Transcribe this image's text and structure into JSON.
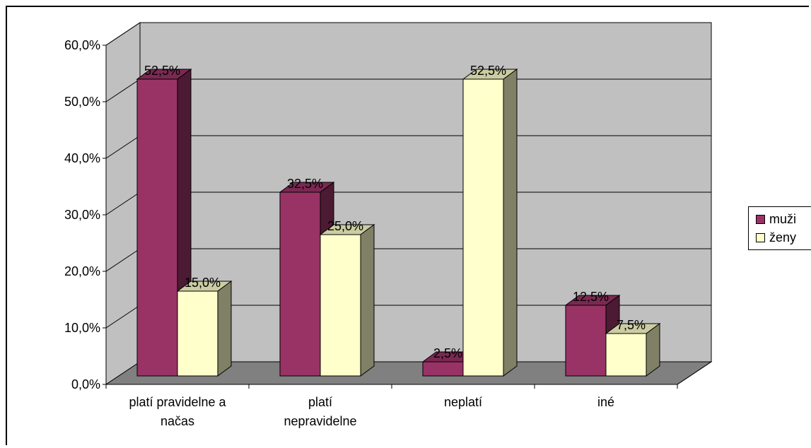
{
  "chart_data": {
    "type": "bar",
    "categories": [
      [
        "platí pravidelne a",
        "načas"
      ],
      [
        "platí",
        "nepravidelne"
      ],
      [
        "neplatí"
      ],
      [
        "iné"
      ]
    ],
    "series": [
      {
        "name": "muži",
        "values": [
          52.5,
          32.5,
          2.5,
          12.5
        ],
        "labels": [
          "52,5%",
          "32,5%",
          "2,5%",
          "12,5%"
        ],
        "color": "#993366",
        "side": "#4d1a33",
        "top": "#7a2952"
      },
      {
        "name": "ženy",
        "values": [
          15.0,
          25.0,
          52.5,
          7.5
        ],
        "labels": [
          "15,0%",
          "25,0%",
          "52,5%",
          "7,5%"
        ],
        "color": "#ffffcc",
        "side": "#808066",
        "top": "#cccca3"
      }
    ],
    "yticks": [
      0,
      10,
      20,
      30,
      40,
      50,
      60
    ],
    "ytick_labels": [
      "0,0%",
      "10,0%",
      "20,0%",
      "30,0%",
      "40,0%",
      "50,0%",
      "60,0%"
    ],
    "ylim": [
      0,
      60
    ],
    "grid": true,
    "legend": "right",
    "colors": {
      "wall": "#c0c0c0",
      "floor": "#808080"
    }
  }
}
